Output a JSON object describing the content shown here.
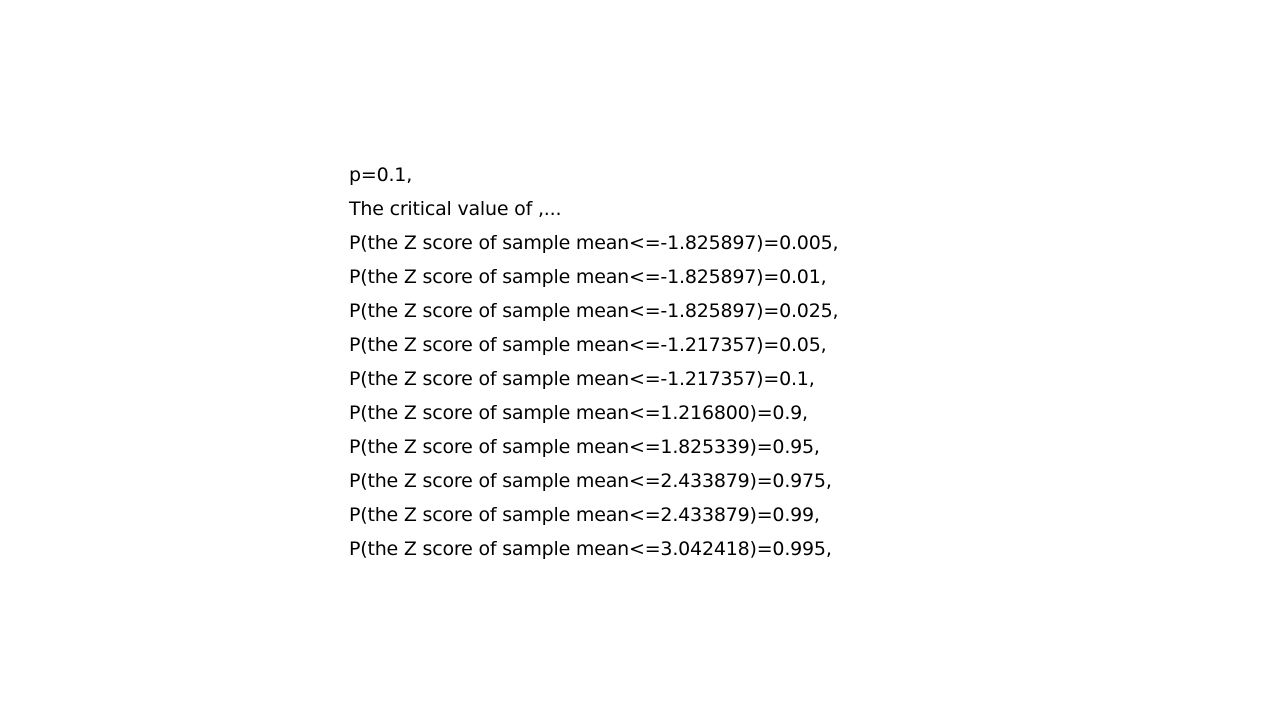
{
  "document": {
    "lines": [
      "p=0.1,",
      "The critical value of ,...",
      "P(the Z score of sample mean<=-1.825897)=0.005,",
      "P(the Z score of sample mean<=-1.825897)=0.01,",
      "P(the Z score of sample mean<=-1.825897)=0.025,",
      "P(the Z score of sample mean<=-1.217357)=0.05,",
      "P(the Z score of sample mean<=-1.217357)=0.1,",
      "P(the Z score of sample mean<=1.216800)=0.9,",
      "P(the Z score of sample mean<=1.825339)=0.95,",
      "P(the Z score of sample mean<=2.433879)=0.975,",
      "P(the Z score of sample mean<=2.433879)=0.99,",
      "P(the Z score of sample mean<=3.042418)=0.995,"
    ]
  }
}
